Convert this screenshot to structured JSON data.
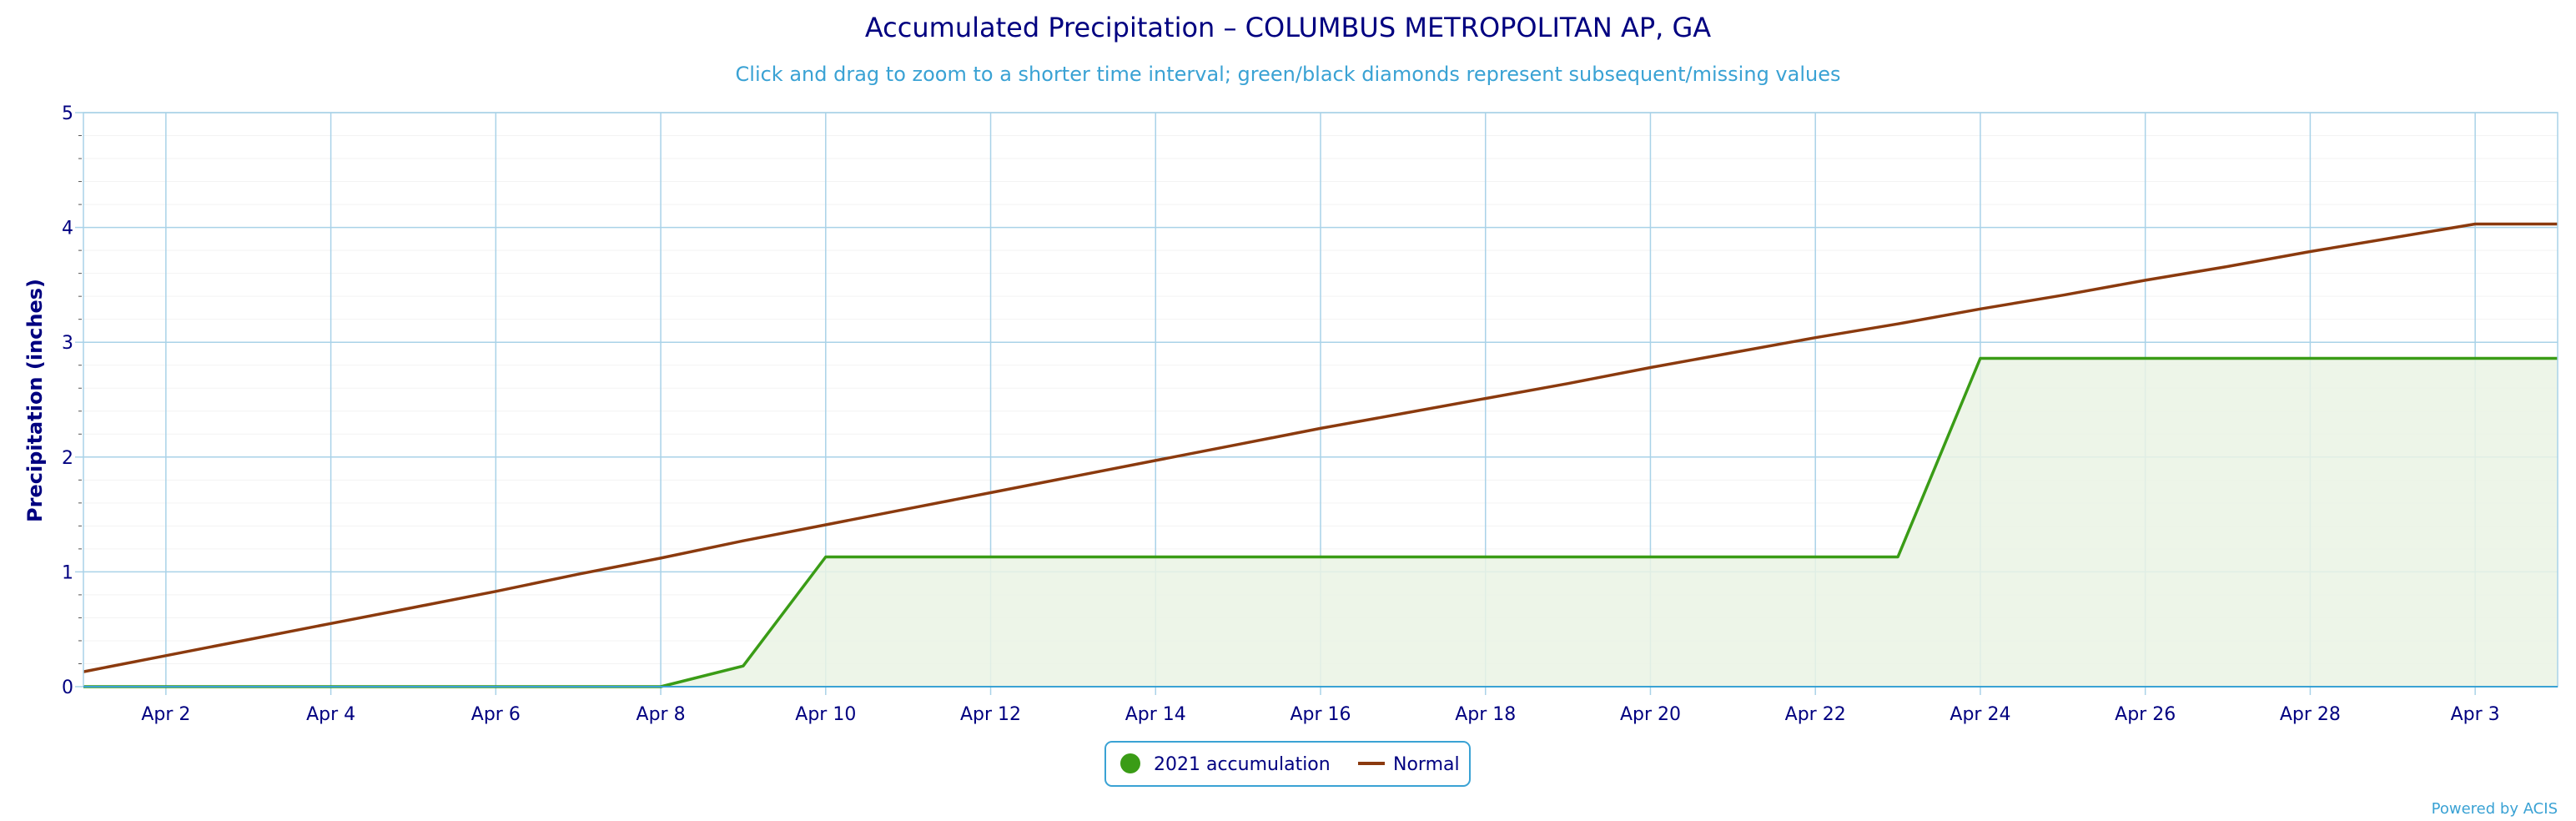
{
  "chart_data": {
    "type": "area",
    "title": "Accumulated Precipitation – COLUMBUS METROPOLITAN AP, GA",
    "subtitle": "Click and drag to zoom to a shorter time interval; green/black diamonds represent subsequent/missing values",
    "ylabel": "Precipitation (inches)",
    "xlabel": "",
    "ylim": [
      0,
      5
    ],
    "yticks": [
      "0",
      "1",
      "2",
      "3",
      "4",
      "5"
    ],
    "x_day_range": [
      1,
      31
    ],
    "xtick_labels": [
      "Apr 2",
      "Apr 4",
      "Apr 6",
      "Apr 8",
      "Apr 10",
      "Apr 12",
      "Apr 14",
      "Apr 16",
      "Apr 18",
      "Apr 20",
      "Apr 22",
      "Apr 24",
      "Apr 26",
      "Apr 28",
      "Apr 3"
    ],
    "grid": true,
    "legend_position": "bottom-center",
    "series": [
      {
        "name": "2021 accumulation",
        "color": "#3a9c16",
        "fill": "#eaf3e4",
        "x": [
          1,
          2,
          3,
          4,
          5,
          6,
          7,
          8,
          9,
          10,
          11,
          12,
          13,
          14,
          15,
          16,
          17,
          18,
          19,
          20,
          21,
          22,
          23,
          24,
          25,
          26,
          27,
          28,
          29,
          30,
          31
        ],
        "values": [
          0,
          0,
          0,
          0,
          0,
          0,
          0,
          0,
          0.18,
          1.13,
          1.13,
          1.13,
          1.13,
          1.13,
          1.13,
          1.13,
          1.13,
          1.13,
          1.13,
          1.13,
          1.13,
          1.13,
          1.13,
          2.86,
          2.86,
          2.86,
          2.86,
          2.86,
          2.86,
          2.86,
          2.86
        ]
      },
      {
        "name": "Normal",
        "color": "#8b3a0e",
        "x": [
          1,
          2,
          3,
          4,
          5,
          6,
          7,
          8,
          9,
          10,
          11,
          12,
          13,
          14,
          15,
          16,
          17,
          18,
          19,
          20,
          21,
          22,
          23,
          24,
          25,
          26,
          27,
          28,
          29,
          30,
          31
        ],
        "values": [
          0.13,
          0.27,
          0.41,
          0.55,
          0.69,
          0.83,
          0.98,
          1.12,
          1.27,
          1.41,
          1.55,
          1.69,
          1.83,
          1.97,
          2.11,
          2.25,
          2.38,
          2.51,
          2.64,
          2.78,
          2.91,
          3.04,
          3.16,
          3.29,
          3.41,
          3.54,
          3.66,
          3.79,
          3.91,
          4.03,
          4.03
        ]
      }
    ]
  },
  "credit": "Powered by ACIS"
}
